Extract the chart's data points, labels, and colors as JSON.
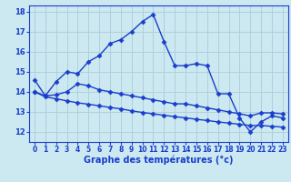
{
  "xlabel": "Graphe des températures (°c)",
  "background_color": "#cce8f0",
  "line_color": "#1a3ecc",
  "marker": "D",
  "markersize": 2.5,
  "linewidth": 1.0,
  "ylim": [
    11.5,
    18.3
  ],
  "xlim": [
    -0.5,
    23.5
  ],
  "yticks": [
    12,
    13,
    14,
    15,
    16,
    17,
    18
  ],
  "xticks": [
    0,
    1,
    2,
    3,
    4,
    5,
    6,
    7,
    8,
    9,
    10,
    11,
    12,
    13,
    14,
    15,
    16,
    17,
    18,
    19,
    20,
    21,
    22,
    23
  ],
  "grid_color": "#aaccda",
  "line1": [
    14.6,
    13.8,
    14.5,
    15.0,
    14.9,
    15.5,
    15.8,
    16.4,
    16.6,
    17.0,
    17.5,
    17.85,
    16.5,
    15.3,
    15.3,
    15.4,
    15.3,
    13.9,
    13.9,
    12.7,
    12.0,
    12.5,
    12.8,
    12.7
  ],
  "line2": [
    14.0,
    13.8,
    13.85,
    14.0,
    14.4,
    14.3,
    14.1,
    14.0,
    13.9,
    13.8,
    13.7,
    13.6,
    13.5,
    13.4,
    13.4,
    13.3,
    13.2,
    13.1,
    13.0,
    12.9,
    12.8,
    12.95,
    12.95,
    12.9
  ],
  "line3": [
    14.0,
    13.75,
    13.65,
    13.55,
    13.45,
    13.38,
    13.3,
    13.22,
    13.15,
    13.05,
    12.97,
    12.9,
    12.83,
    12.76,
    12.7,
    12.63,
    12.57,
    12.5,
    12.44,
    12.38,
    12.32,
    12.32,
    12.28,
    12.24
  ]
}
